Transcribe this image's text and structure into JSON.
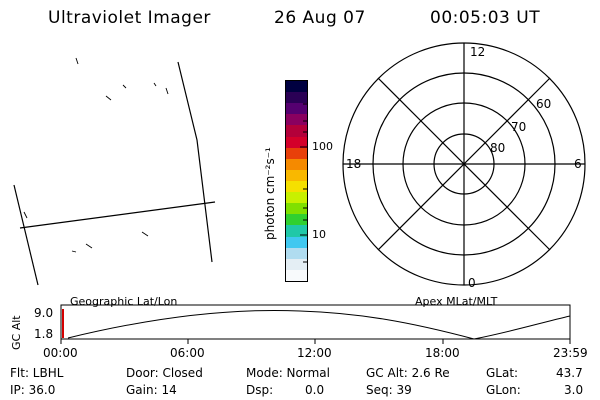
{
  "header": {
    "instrument": "Ultraviolet Imager",
    "date": "26 Aug 07",
    "time": "00:05:03 UT"
  },
  "colorbar": {
    "unit_label": "photon cm⁻²s⁻¹",
    "tick_100": "100",
    "tick_10": "10",
    "colors": [
      "#000040",
      "#2a0055",
      "#550070",
      "#8a0060",
      "#b3003a",
      "#d4002a",
      "#e8400a",
      "#f58a00",
      "#f9b800",
      "#f5e000",
      "#c8f000",
      "#80e000",
      "#30d030",
      "#20c8a8",
      "#40c8f0",
      "#b0dcf0",
      "#e4eef4",
      "#f8fafc"
    ]
  },
  "polar": {
    "labels": {
      "top": "12",
      "left": "18",
      "right": "6",
      "bottom": "0"
    },
    "lat_labels": [
      "60",
      "70",
      "80"
    ]
  },
  "timeline": {
    "y_axis_title": "GC Alt",
    "y_top": "9.0",
    "y_bottom": "1.8",
    "left_title": "Geographic Lat/Lon",
    "right_title": "Apex MLat/MLT",
    "time_ticks": [
      "00:00",
      "06:00",
      "12:00",
      "18:00",
      "23:59"
    ]
  },
  "status": {
    "filter": "Flt: LBHL",
    "ip": "IP: 36.0",
    "door": "Door: Closed",
    "gain": "Gain: 14",
    "mode": "Mode: Normal",
    "dsp_label": "Dsp:",
    "dsp_value": "0.0",
    "gc_alt": "GC Alt: 2.6 Re",
    "seq": "Seq: 39",
    "glat_label": "GLat:",
    "glat_value": "43.7",
    "glon_label": "GLon:",
    "glon_value": "3.0"
  }
}
